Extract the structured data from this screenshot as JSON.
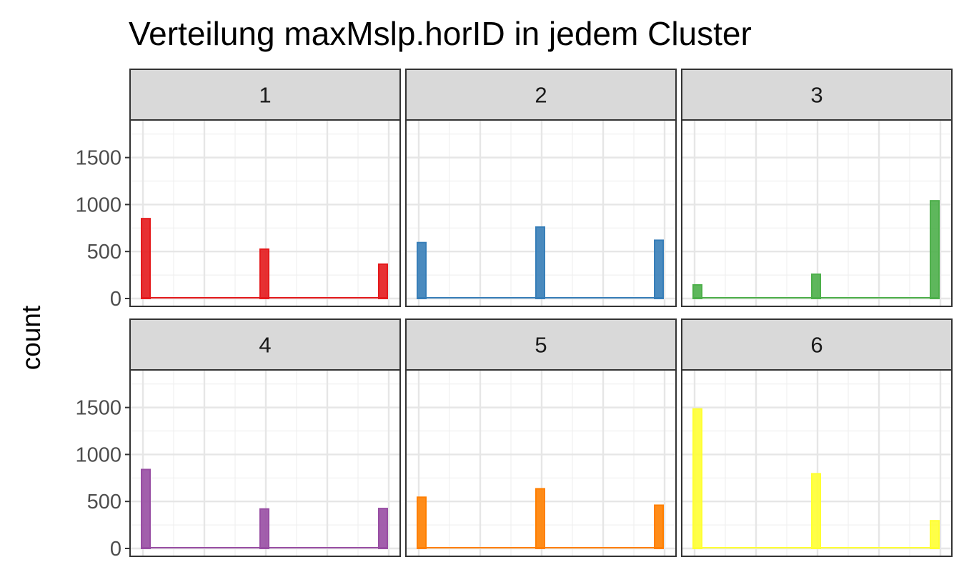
{
  "chart_data": {
    "type": "bar",
    "title": "Verteilung maxMslp.horID in jedem Cluster",
    "xlabel": "",
    "ylabel": "count",
    "ylim": [
      0,
      1900
    ],
    "yticks": [
      0,
      500,
      1000,
      1500
    ],
    "grid": true,
    "facets": [
      {
        "label": "1",
        "color": "#E41A1C",
        "values": [
          850,
          525,
          365
        ]
      },
      {
        "label": "2",
        "color": "#377EB8",
        "values": [
          595,
          760,
          620
        ]
      },
      {
        "label": "3",
        "color": "#4DAF4A",
        "values": [
          145,
          258,
          1040
        ]
      },
      {
        "label": "4",
        "color": "#984EA3",
        "values": [
          840,
          420,
          425
        ]
      },
      {
        "label": "5",
        "color": "#FF7F00",
        "values": [
          545,
          635,
          460
        ]
      },
      {
        "label": "6",
        "color": "#FFFF33",
        "values": [
          1485,
          795,
          295
        ]
      }
    ]
  }
}
